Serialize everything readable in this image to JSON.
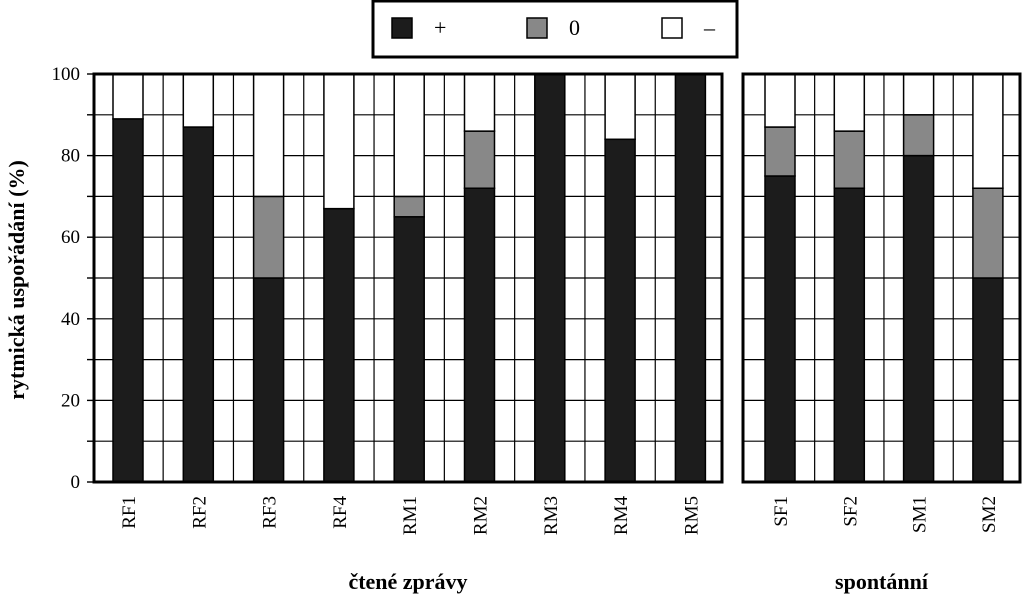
{
  "chart_data": {
    "type": "bar",
    "stacked": true,
    "ylabel": "rytmická uspořádání (%)",
    "ylim": [
      0,
      100
    ],
    "yticks": [
      0,
      20,
      40,
      60,
      80,
      100
    ],
    "grid": true,
    "legend_position": "top-center",
    "series": [
      {
        "name": "+",
        "color": "#1c1c1c"
      },
      {
        "name": "0",
        "color": "#888888"
      },
      {
        "name": "–",
        "color": "#ffffff"
      }
    ],
    "panels": [
      {
        "title": "čtené zprávy",
        "categories": [
          "RF1",
          "RF2",
          "RF3",
          "RF4",
          "RM1",
          "RM2",
          "RM3",
          "RM4",
          "RM5"
        ],
        "values": {
          "+": [
            89,
            87,
            50,
            67,
            65,
            72,
            100,
            84,
            100
          ],
          "0": [
            0,
            0,
            20,
            0,
            5,
            14,
            0,
            0,
            0
          ],
          "–": [
            11,
            13,
            30,
            33,
            30,
            14,
            0,
            16,
            0
          ]
        }
      },
      {
        "title": "spontánní",
        "categories": [
          "SF1",
          "SF2",
          "SM1",
          "SM2"
        ],
        "values": {
          "+": [
            75,
            72,
            80,
            50
          ],
          "0": [
            12,
            14,
            10,
            22
          ],
          "–": [
            13,
            14,
            10,
            28
          ]
        }
      }
    ]
  }
}
